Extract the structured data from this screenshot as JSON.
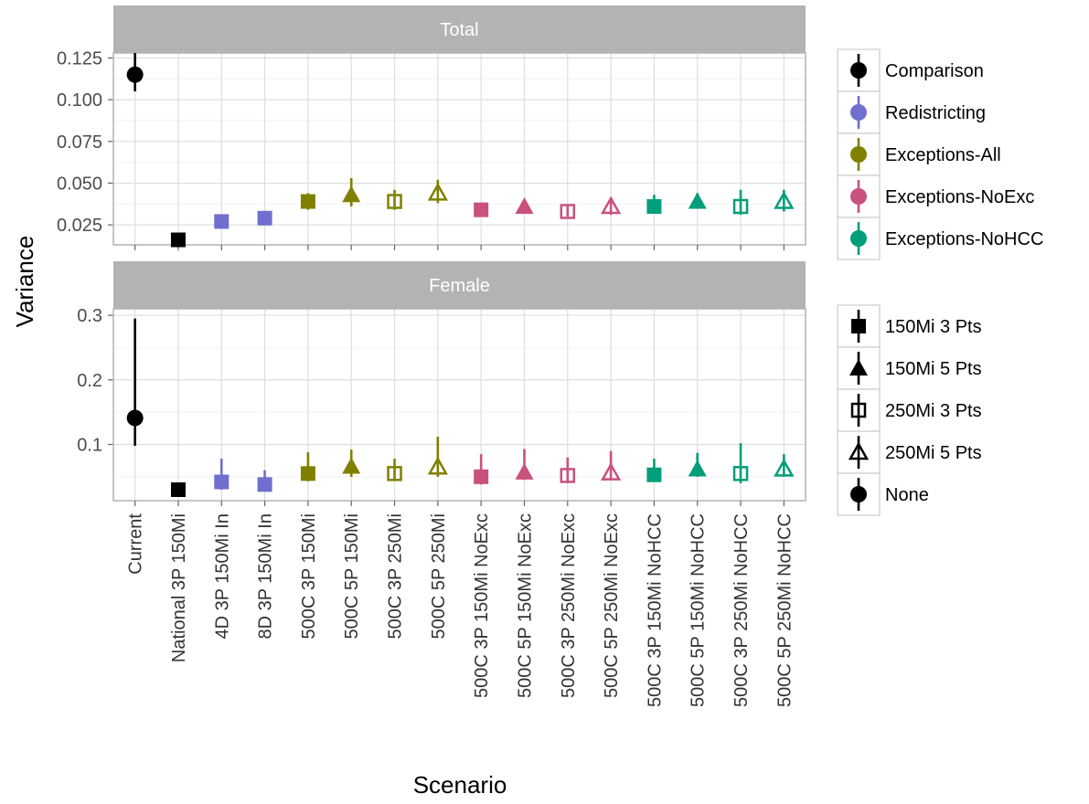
{
  "chart_data": {
    "type": "scatter",
    "xlabel": "Scenario",
    "ylabel": "Variance",
    "categories": [
      "Current",
      "National 3P 150Mi",
      "4D 3P 150Mi In",
      "8D 3P 150Mi In",
      "500C 3P 150Mi",
      "500C 5P 150Mi",
      "500C 3P 250Mi",
      "500C 5P 250Mi",
      "500C 3P 150Mi NoExc",
      "500C 5P 150Mi NoExc",
      "500C 3P 250Mi NoExc",
      "500C 5P 250Mi NoExc",
      "500C 3P 150Mi NoHCC",
      "500C 5P 150Mi NoHCC",
      "500C 3P 250Mi NoHCC",
      "500C 5P 250Mi NoHCC"
    ],
    "point_groups": [
      "Comparison",
      "Comparison",
      "Redistricting",
      "Redistricting",
      "Exceptions-All",
      "Exceptions-All",
      "Exceptions-All",
      "Exceptions-All",
      "Exceptions-NoExc",
      "Exceptions-NoExc",
      "Exceptions-NoExc",
      "Exceptions-NoExc",
      "Exceptions-NoHCC",
      "Exceptions-NoHCC",
      "Exceptions-NoHCC",
      "Exceptions-NoHCC"
    ],
    "point_shapes": [
      "None",
      "150Mi 3 Pts",
      "150Mi 3 Pts",
      "150Mi 3 Pts",
      "150Mi 3 Pts",
      "150Mi 5 Pts",
      "250Mi 3 Pts",
      "250Mi 5 Pts",
      "150Mi 3 Pts",
      "150Mi 5 Pts",
      "250Mi 3 Pts",
      "250Mi 5 Pts",
      "150Mi 3 Pts",
      "150Mi 5 Pts",
      "250Mi 3 Pts",
      "250Mi 5 Pts"
    ],
    "panels": [
      {
        "strip": "Total",
        "ylim": [
          0.013,
          0.128
        ],
        "yticks": [
          0.025,
          0.05,
          0.075,
          0.1,
          0.125
        ],
        "ytick_labels": [
          "0.025",
          "0.050",
          "0.075",
          "0.100",
          "0.125"
        ],
        "values": [
          0.115,
          0.016,
          0.027,
          0.029,
          0.039,
          0.043,
          0.039,
          0.044,
          0.034,
          0.036,
          0.033,
          0.036,
          0.036,
          0.039,
          0.036,
          0.039
        ],
        "lower": [
          0.105,
          0.016,
          0.025,
          0.027,
          0.034,
          0.036,
          0.034,
          0.038,
          0.031,
          0.033,
          0.03,
          0.031,
          0.032,
          0.036,
          0.031,
          0.033
        ],
        "upper": [
          0.128,
          0.016,
          0.031,
          0.032,
          0.044,
          0.053,
          0.046,
          0.052,
          0.038,
          0.04,
          0.037,
          0.041,
          0.043,
          0.044,
          0.046,
          0.046
        ]
      },
      {
        "strip": "Female",
        "ylim": [
          0.013,
          0.31
        ],
        "yticks": [
          0.1,
          0.2,
          0.3
        ],
        "ytick_labels": [
          "0.1",
          "0.2",
          "0.3"
        ],
        "values": [
          0.141,
          0.03,
          0.042,
          0.038,
          0.055,
          0.066,
          0.055,
          0.065,
          0.05,
          0.057,
          0.052,
          0.056,
          0.053,
          0.062,
          0.055,
          0.062
        ],
        "lower": [
          0.098,
          0.03,
          0.03,
          0.03,
          0.043,
          0.05,
          0.045,
          0.05,
          0.038,
          0.045,
          0.04,
          0.045,
          0.043,
          0.05,
          0.04,
          0.05
        ],
        "upper": [
          0.295,
          0.03,
          0.078,
          0.06,
          0.088,
          0.092,
          0.078,
          0.112,
          0.085,
          0.093,
          0.08,
          0.09,
          0.078,
          0.087,
          0.102,
          0.085
        ]
      }
    ],
    "grid": true,
    "legend_placement": "right",
    "legend_groups": [
      {
        "items": [
          {
            "label": "Comparison",
            "color": "#000000"
          },
          {
            "label": "Redistricting",
            "color": "#6f6fcf"
          },
          {
            "label": "Exceptions-All",
            "color": "#808000"
          },
          {
            "label": "Exceptions-NoExc",
            "color": "#c9517d"
          },
          {
            "label": "Exceptions-NoHCC",
            "color": "#009e7a"
          }
        ]
      },
      {
        "items": [
          {
            "label": "150Mi 3 Pts",
            "shape": "square-filled"
          },
          {
            "label": "150Mi 5 Pts",
            "shape": "triangle-filled"
          },
          {
            "label": "250Mi 3 Pts",
            "shape": "square-open"
          },
          {
            "label": "250Mi 5 Pts",
            "shape": "triangle-open"
          },
          {
            "label": "None",
            "shape": "circle-filled"
          }
        ]
      }
    ]
  }
}
